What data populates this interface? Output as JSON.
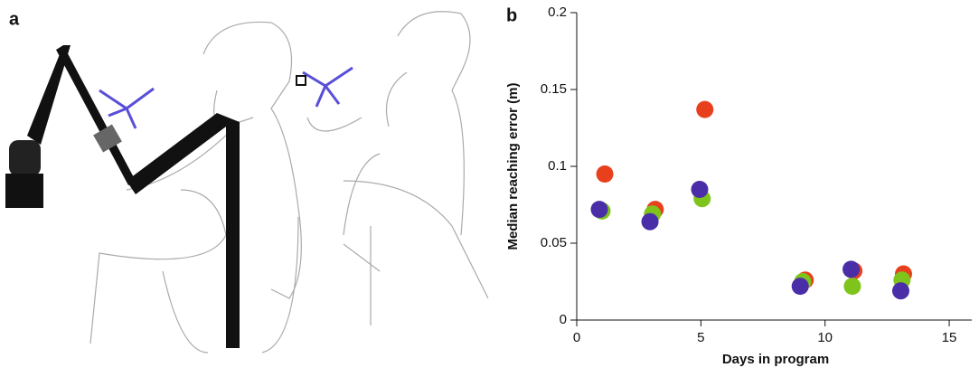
{
  "panel_labels": [
    "a",
    "b"
  ],
  "chart_data": {
    "type": "scatter",
    "xlabel": "Days in program",
    "ylabel": "Median reaching error (m)",
    "xlim": [
      0,
      16
    ],
    "ylim": [
      0,
      0.2
    ],
    "xticks": [
      0,
      5,
      10,
      15
    ],
    "yticks": [
      0,
      0.05,
      0.1,
      0.15,
      0.2
    ],
    "series": [
      {
        "color": "#e8401c",
        "x": [
          1.13,
          3.16,
          5.16,
          9.2,
          11.16,
          13.16
        ],
        "values": [
          0.095,
          0.072,
          0.137,
          0.026,
          0.032,
          0.03
        ]
      },
      {
        "color": "#7fc41c",
        "x": [
          1.02,
          3.05,
          5.05,
          9.1,
          11.1,
          13.1
        ],
        "values": [
          0.071,
          0.069,
          0.079,
          0.025,
          0.022,
          0.026
        ]
      },
      {
        "color": "#4a2ea8",
        "x": [
          0.91,
          2.95,
          4.95,
          9.0,
          11.05,
          13.05
        ],
        "values": [
          0.072,
          0.064,
          0.085,
          0.022,
          0.033,
          0.019
        ]
      }
    ]
  }
}
